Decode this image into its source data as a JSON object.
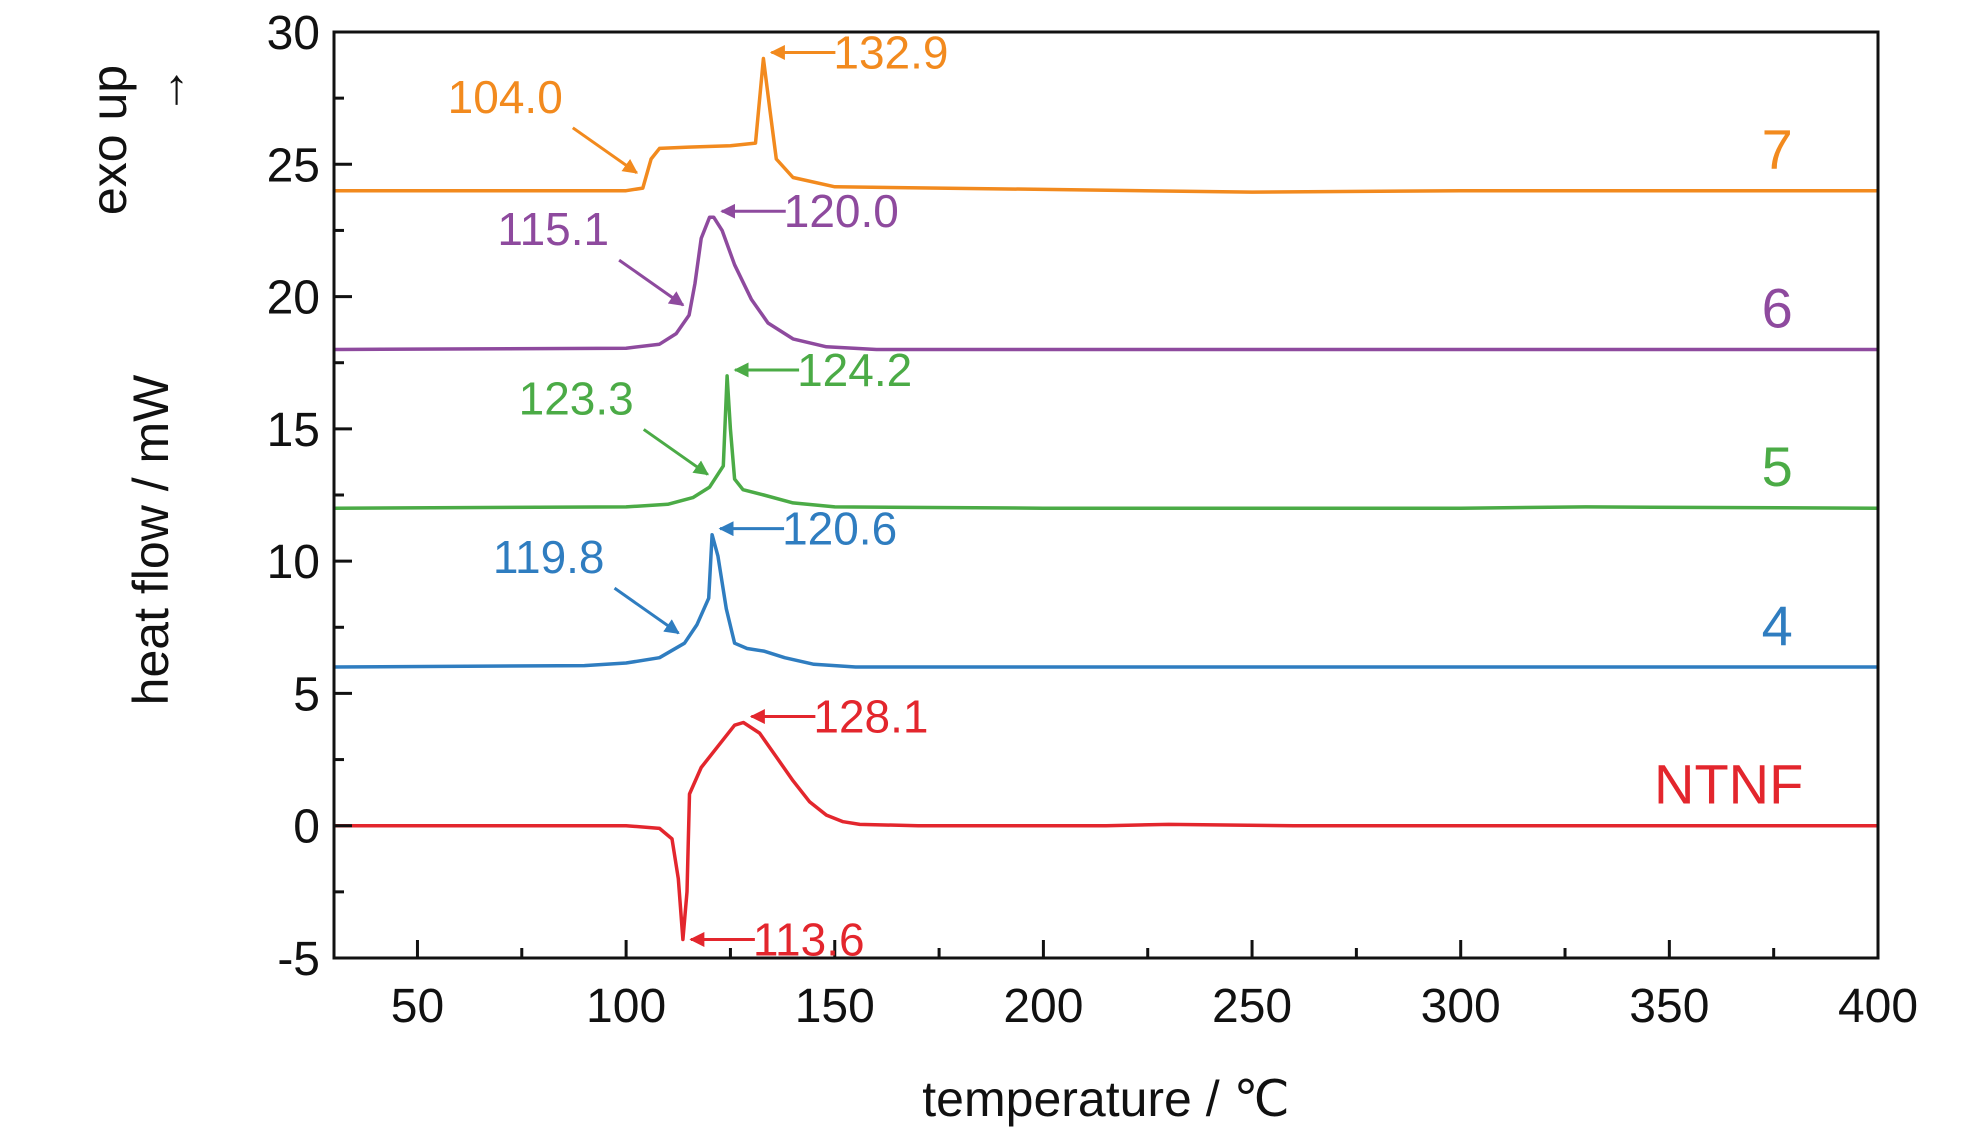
{
  "chart_data": {
    "type": "line",
    "xlabel": "temperature / ℃",
    "ylabel": "heat flow / mW",
    "exo_label": "exo up",
    "exo_arrow": "→",
    "xlim": [
      30,
      400
    ],
    "ylim": [
      -5,
      30
    ],
    "xticks": [
      50,
      100,
      150,
      200,
      250,
      300,
      350,
      400
    ],
    "yticks": [
      -5,
      0,
      5,
      10,
      15,
      20,
      25,
      30
    ],
    "grid": false,
    "legend": "none",
    "series": [
      {
        "name": "NTNF",
        "color": "#e3262d",
        "baseline": 0,
        "points": [
          [
            30,
            0
          ],
          [
            100,
            0
          ],
          [
            108,
            -0.1
          ],
          [
            111,
            -0.5
          ],
          [
            112.5,
            -2
          ],
          [
            113.6,
            -4.3
          ],
          [
            114.6,
            -2.5
          ],
          [
            115.2,
            1.2
          ],
          [
            118,
            2.2
          ],
          [
            122,
            3.0
          ],
          [
            126,
            3.8
          ],
          [
            128.1,
            3.9
          ],
          [
            132,
            3.5
          ],
          [
            136,
            2.6
          ],
          [
            140,
            1.7
          ],
          [
            144,
            0.9
          ],
          [
            148,
            0.4
          ],
          [
            152,
            0.15
          ],
          [
            156,
            0.05
          ],
          [
            170,
            0
          ],
          [
            215,
            0
          ],
          [
            230,
            0.05
          ],
          [
            260,
            0
          ],
          [
            300,
            0
          ],
          [
            340,
            0
          ],
          [
            400,
            0
          ]
        ],
        "annotations": [
          {
            "text": "128.1",
            "x": 128.1,
            "y": 3.9
          },
          {
            "text": "113.6",
            "x": 113.6,
            "y": -4.3
          }
        ]
      },
      {
        "name": "4",
        "color": "#2f7dc0",
        "baseline": 6,
        "points": [
          [
            30,
            6
          ],
          [
            90,
            6.05
          ],
          [
            100,
            6.15
          ],
          [
            108,
            6.35
          ],
          [
            114,
            6.9
          ],
          [
            117,
            7.6
          ],
          [
            119.8,
            8.6
          ],
          [
            120.6,
            11.0
          ],
          [
            122,
            10.2
          ],
          [
            124,
            8.2
          ],
          [
            126,
            6.9
          ],
          [
            129,
            6.7
          ],
          [
            133,
            6.6
          ],
          [
            138,
            6.35
          ],
          [
            145,
            6.1
          ],
          [
            155,
            6.0
          ],
          [
            200,
            6.0
          ],
          [
            300,
            6.0
          ],
          [
            400,
            6.0
          ]
        ],
        "annotations": [
          {
            "text": "120.6",
            "x": 120.6,
            "y": 11.0
          },
          {
            "text": "119.8",
            "x": 114,
            "y": 6.9
          }
        ]
      },
      {
        "name": "5",
        "color": "#4bab46",
        "baseline": 12,
        "points": [
          [
            30,
            12
          ],
          [
            100,
            12.05
          ],
          [
            110,
            12.15
          ],
          [
            116,
            12.4
          ],
          [
            120,
            12.8
          ],
          [
            123.3,
            13.6
          ],
          [
            124.2,
            17.0
          ],
          [
            125,
            15.0
          ],
          [
            126,
            13.1
          ],
          [
            128,
            12.7
          ],
          [
            133,
            12.5
          ],
          [
            140,
            12.2
          ],
          [
            150,
            12.05
          ],
          [
            200,
            12.0
          ],
          [
            300,
            12.0
          ],
          [
            330,
            12.05
          ],
          [
            400,
            12.0
          ]
        ],
        "annotations": [
          {
            "text": "124.2",
            "x": 124.2,
            "y": 17.0
          },
          {
            "text": "123.3",
            "x": 121,
            "y": 12.9
          }
        ]
      },
      {
        "name": "6",
        "color": "#8e4a9e",
        "baseline": 18,
        "points": [
          [
            30,
            18
          ],
          [
            100,
            18.05
          ],
          [
            108,
            18.2
          ],
          [
            112,
            18.6
          ],
          [
            115.1,
            19.3
          ],
          [
            116.5,
            20.5
          ],
          [
            118,
            22.2
          ],
          [
            120,
            23.0
          ],
          [
            121,
            23.0
          ],
          [
            123,
            22.5
          ],
          [
            126,
            21.2
          ],
          [
            130,
            19.9
          ],
          [
            134,
            19.0
          ],
          [
            140,
            18.4
          ],
          [
            148,
            18.1
          ],
          [
            160,
            18.0
          ],
          [
            200,
            18.0
          ],
          [
            300,
            18.0
          ],
          [
            400,
            18.0
          ]
        ],
        "annotations": [
          {
            "text": "120.0",
            "x": 121,
            "y": 23.0
          },
          {
            "text": "115.1",
            "x": 115.1,
            "y": 19.3
          }
        ]
      },
      {
        "name": "7",
        "color": "#f28a1e",
        "baseline": 24,
        "points": [
          [
            30,
            24
          ],
          [
            100,
            24.0
          ],
          [
            104,
            24.1
          ],
          [
            106,
            25.2
          ],
          [
            108,
            25.6
          ],
          [
            115,
            25.65
          ],
          [
            125,
            25.7
          ],
          [
            131,
            25.8
          ],
          [
            132.9,
            29.0
          ],
          [
            134.5,
            27.0
          ],
          [
            136,
            25.2
          ],
          [
            140,
            24.5
          ],
          [
            150,
            24.15
          ],
          [
            200,
            24.05
          ],
          [
            250,
            23.95
          ],
          [
            300,
            24.0
          ],
          [
            400,
            24.0
          ]
        ],
        "annotations": [
          {
            "text": "132.9",
            "x": 132.9,
            "y": 29.0
          },
          {
            "text": "104.0",
            "x": 104.0,
            "y": 24.3
          }
        ]
      }
    ]
  }
}
